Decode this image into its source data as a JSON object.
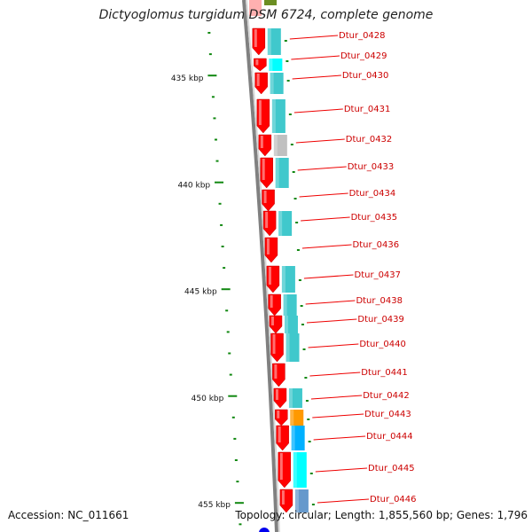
{
  "title": "Dictyoglomus turgidum DSM 6724, complete genome",
  "footer": {
    "accession": "Accession: NC_011661",
    "summary": "Topology: circular; Length: 1,855,560 bp; Genes: 1,796"
  },
  "scale_labels": [
    "435 kbp",
    "440 kbp",
    "445 kbp",
    "450 kbp",
    "455 kbp"
  ],
  "genes": [
    {
      "id": "Dtur_0428",
      "cog": "#40c8cc"
    },
    {
      "id": "Dtur_0429",
      "cog": "#00ffff"
    },
    {
      "id": "Dtur_0430",
      "cog": "#40c8cc"
    },
    {
      "id": "Dtur_0431",
      "cog": "#40c8cc"
    },
    {
      "id": "Dtur_0432",
      "cog": "#c0c0c0"
    },
    {
      "id": "Dtur_0433",
      "cog": "#40c8cc"
    },
    {
      "id": "Dtur_0434",
      "cog": ""
    },
    {
      "id": "Dtur_0435",
      "cog": "#40c8cc"
    },
    {
      "id": "Dtur_0436",
      "cog": ""
    },
    {
      "id": "Dtur_0437",
      "cog": "#40c8cc"
    },
    {
      "id": "Dtur_0438",
      "cog": "#40c8cc"
    },
    {
      "id": "Dtur_0439",
      "cog": "#40c8cc"
    },
    {
      "id": "Dtur_0440",
      "cog": "#40c8cc"
    },
    {
      "id": "Dtur_0441",
      "cog": ""
    },
    {
      "id": "Dtur_0442",
      "cog": "#40c8cc"
    },
    {
      "id": "Dtur_0443",
      "cog": "#ff9900"
    },
    {
      "id": "Dtur_0444",
      "cog": "#00b0ff"
    },
    {
      "id": "Dtur_0445",
      "cog": "#00ffff"
    },
    {
      "id": "Dtur_0446",
      "cog": "#6699cc"
    }
  ],
  "colors": {
    "gene_arrow": "#ff0000",
    "label": "#cc0000",
    "leader": "#ee0000",
    "scale_tick": "#118811",
    "backbone": "#808080"
  }
}
